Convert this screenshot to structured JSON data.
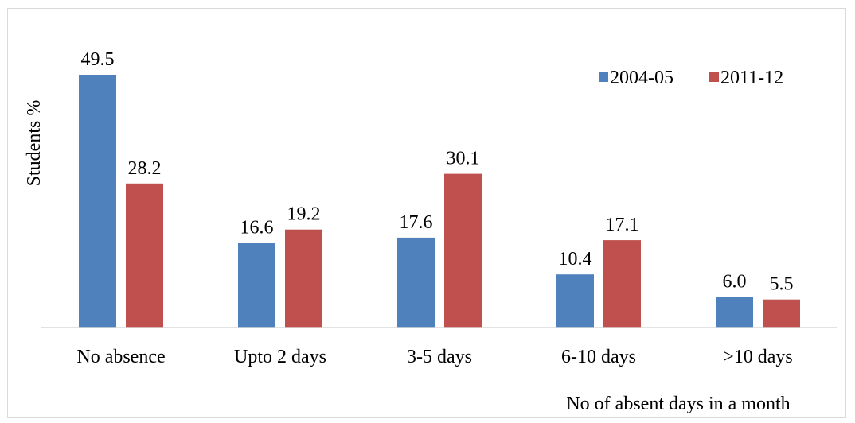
{
  "chart_data": {
    "type": "bar",
    "categories": [
      "No absence",
      "Upto 2 days",
      "3-5 days",
      "6-10 days",
      ">10 days"
    ],
    "series": [
      {
        "name": "2004-05",
        "color": "#4f81bd",
        "values": [
          49.5,
          16.6,
          17.6,
          10.4,
          6.0
        ],
        "labels": [
          "49.5",
          "16.6",
          "17.6",
          "10.4",
          "6.0"
        ]
      },
      {
        "name": "2011-12",
        "color": "#c0504d",
        "values": [
          28.2,
          19.2,
          30.1,
          17.1,
          5.5
        ],
        "labels": [
          "28.2",
          "19.2",
          "30.1",
          "17.1",
          "5.5"
        ]
      }
    ],
    "xlabel": "No of absent days in a month",
    "ylabel": "Students %",
    "ylim": [
      0,
      50
    ],
    "grid": false,
    "legend": "top-right"
  }
}
